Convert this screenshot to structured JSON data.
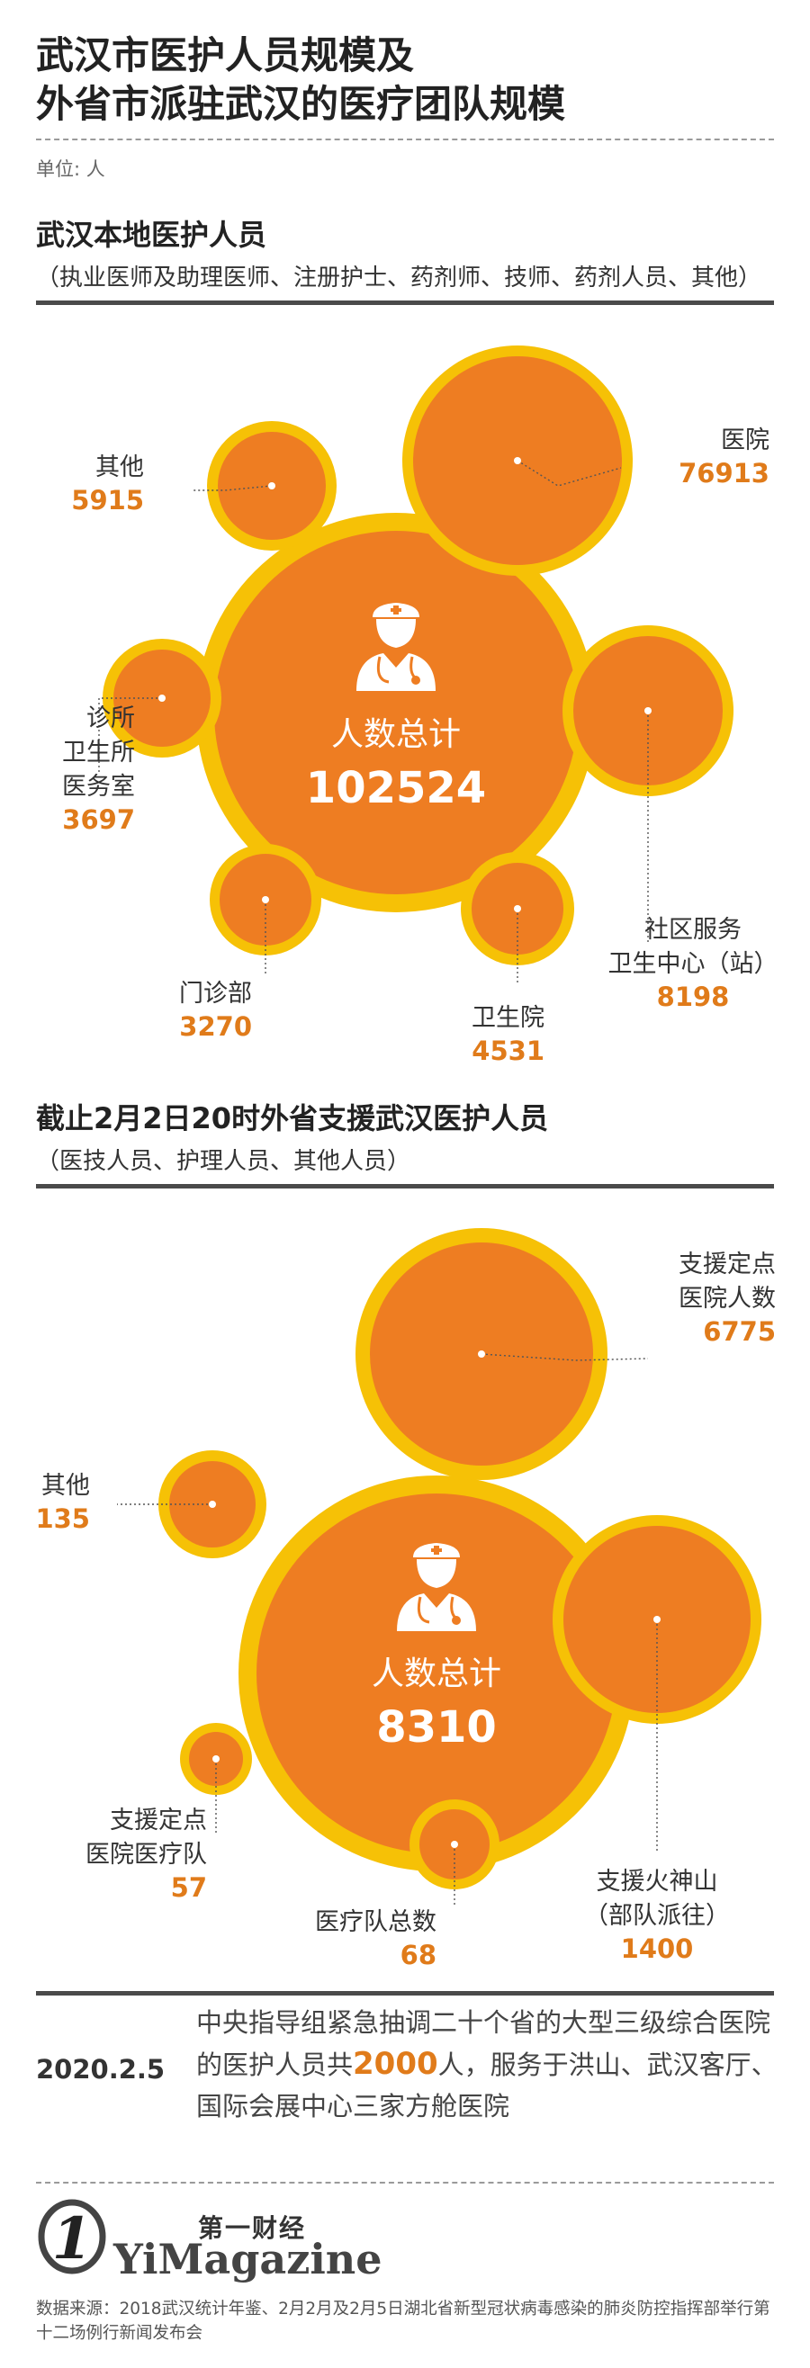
{
  "title": {
    "line1": "武汉市医护人员规模及",
    "line2": "外省市派驻武汉的医疗团队规模"
  },
  "unit": "单位: 人",
  "colors": {
    "ring": "#f6c106",
    "fill": "#ee7d22",
    "value_text": "#e07b1a",
    "label_text": "#333333",
    "leader": "#555555"
  },
  "section1": {
    "title": "武汉本地医护人员",
    "subtitle": "（执业医师及助理医师、注册护士、药剂师、技师、药剂人员、其他）"
  },
  "section2": {
    "title": "截止2月2日20时外省支援武汉医护人员",
    "subtitle": "（医技人员、护理人员、其他人员）"
  },
  "chart_data": [
    {
      "type": "bubble",
      "title": "武汉本地医护人员",
      "total": {
        "label": "人数总计",
        "value": 102524
      },
      "items": [
        {
          "label": [
            "医院"
          ],
          "value": 76913
        },
        {
          "label": [
            "其他"
          ],
          "value": 5915
        },
        {
          "label": [
            "诊所",
            "卫生所",
            "医务室"
          ],
          "value": 3697
        },
        {
          "label": [
            "门诊部"
          ],
          "value": 3270
        },
        {
          "label": [
            "卫生院"
          ],
          "value": 4531
        },
        {
          "label": [
            "社区服务",
            "卫生中心（站）"
          ],
          "value": 8198
        }
      ]
    },
    {
      "type": "bubble",
      "title": "截止2月2日20时外省支援武汉医护人员",
      "total": {
        "label": "人数总计",
        "value": 8310
      },
      "items": [
        {
          "label": [
            "支援定点",
            "医院人数"
          ],
          "value": 6775
        },
        {
          "label": [
            "其他"
          ],
          "value": 135
        },
        {
          "label": [
            "支援定点",
            "医院医疗队"
          ],
          "value": 57
        },
        {
          "label": [
            "医疗队总数"
          ],
          "value": 68
        },
        {
          "label": [
            "支援火神山",
            "（部队派往）"
          ],
          "value": 1400
        }
      ]
    }
  ],
  "footer": {
    "date": "2020.2.5",
    "text_before": "中央指导组紧急抽调二十个省的大型三级综合医院的医护人员共",
    "highlight": "2000",
    "text_after": "人，服务于洪山、武汉客厅、国际会展中心三家方舱医院"
  },
  "logo": {
    "mark": "1",
    "cn": "第一财经",
    "en": "YiMagazine"
  },
  "source": "数据来源：2018武汉统计年鉴、2月2月及2月5日湖北省新型冠状病毒感染的肺炎防控指挥部举行第十二场例行新闻发布会"
}
